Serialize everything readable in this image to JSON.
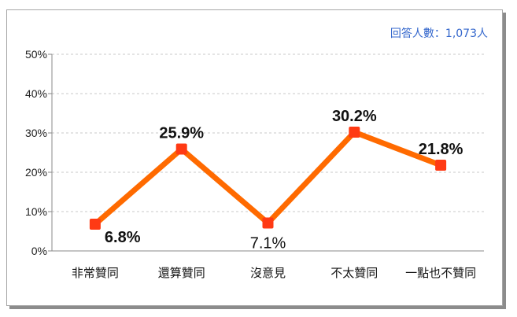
{
  "note": "回答人數：1,073人",
  "colors": {
    "line": "#ff6a00",
    "marker": "#ff3a14",
    "grid": "#c8c8c8",
    "axis": "#888888",
    "note": "#3366cc"
  },
  "chart_data": {
    "type": "line",
    "categories": [
      "非常贊同",
      "還算贊同",
      "沒意見",
      "不太贊同",
      "一點也不贊同"
    ],
    "series": [
      {
        "values": [
          6.8,
          25.9,
          7.1,
          30.2,
          21.8
        ]
      }
    ],
    "data_labels": [
      "6.8%",
      "25.9%",
      "7.1%",
      "30.2%",
      "21.8%"
    ],
    "yticks": [
      "0%",
      "10%",
      "20%",
      "30%",
      "40%",
      "50%"
    ],
    "ylim": [
      0,
      50
    ],
    "grid": "horizontal dashed",
    "legend": "none"
  }
}
